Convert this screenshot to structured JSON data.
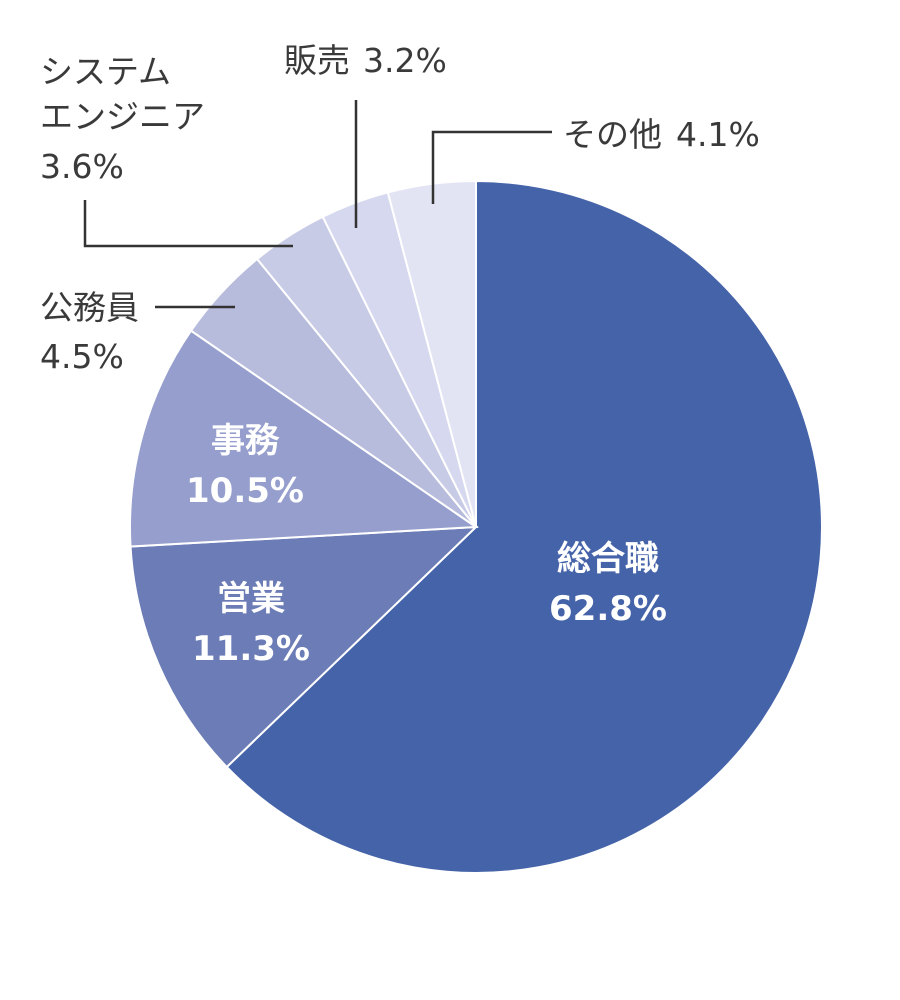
{
  "chart_data": {
    "type": "pie",
    "start": "12 o'clock",
    "direction": "clockwise",
    "slices": [
      {
        "label": "総合職",
        "value": 62.8,
        "value_text": "62.8%",
        "color": "#4563a9"
      },
      {
        "label": "営業",
        "value": 11.3,
        "value_text": "11.3%",
        "color": "#6b7cb6"
      },
      {
        "label": "事務",
        "value": 10.5,
        "value_text": "10.5%",
        "color": "#959ecc"
      },
      {
        "label": "公務員",
        "value": 4.5,
        "value_text": "4.5%",
        "color": "#b7bbdc"
      },
      {
        "label": "システムエンジニア",
        "label_lines": [
          "システム",
          "エンジニア"
        ],
        "value": 3.6,
        "value_text": "3.6%",
        "color": "#c8cbe6"
      },
      {
        "label": "販売",
        "value": 3.2,
        "value_text": "3.2%",
        "color": "#d5d8ee"
      },
      {
        "label": "その他",
        "value": 4.1,
        "value_text": "4.1%",
        "color": "#e2e4f3"
      }
    ]
  }
}
